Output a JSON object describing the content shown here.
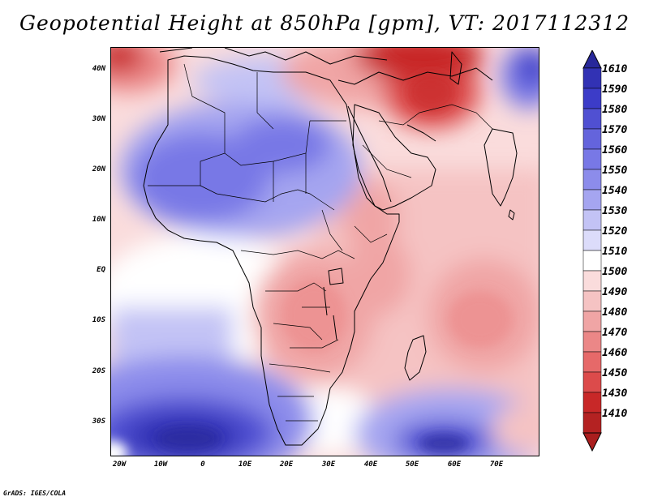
{
  "title": "Geopotential Height at 850hPa [gpm], VT: 2017112312",
  "footer": "GrADS: IGES/COLA",
  "map": {
    "variable": "Geopotential Height",
    "level": "850hPa",
    "units": "gpm",
    "valid_time": "2017112312",
    "lat_labels": [
      "40N",
      "30N",
      "20N",
      "10N",
      "EQ",
      "10S",
      "20S",
      "30S"
    ],
    "lat_values": [
      40,
      30,
      20,
      10,
      0,
      -10,
      -20,
      -30
    ],
    "lon_labels": [
      "20W",
      "10W",
      "0",
      "10E",
      "20E",
      "30E",
      "40E",
      "50E",
      "60E",
      "70E"
    ],
    "lon_values": [
      -20,
      -10,
      0,
      10,
      20,
      30,
      40,
      50,
      60,
      70
    ],
    "lon_range": [
      -22,
      80
    ],
    "lat_range": [
      -37,
      45
    ]
  },
  "colorbar": {
    "labels": [
      "1610",
      "1590",
      "1580",
      "1570",
      "1560",
      "1550",
      "1540",
      "1530",
      "1520",
      "1510",
      "1500",
      "1490",
      "1480",
      "1470",
      "1460",
      "1450",
      "1430",
      "1410"
    ],
    "colors": [
      "#28289a",
      "#3232b4",
      "#3c3cc8",
      "#5050d2",
      "#6464dc",
      "#7878e6",
      "#8c8ceb",
      "#a5a5f0",
      "#c3c3f5",
      "#dcdcfa",
      "#ffffff",
      "#fadcdc",
      "#f5c3c3",
      "#f0a5a5",
      "#eb8787",
      "#e66969",
      "#dc4b4b",
      "#c82828",
      "#aa1e1e"
    ]
  },
  "colors": {
    "high": "#28289a",
    "neutral": "#ffffff",
    "low": "#aa1e1e"
  }
}
